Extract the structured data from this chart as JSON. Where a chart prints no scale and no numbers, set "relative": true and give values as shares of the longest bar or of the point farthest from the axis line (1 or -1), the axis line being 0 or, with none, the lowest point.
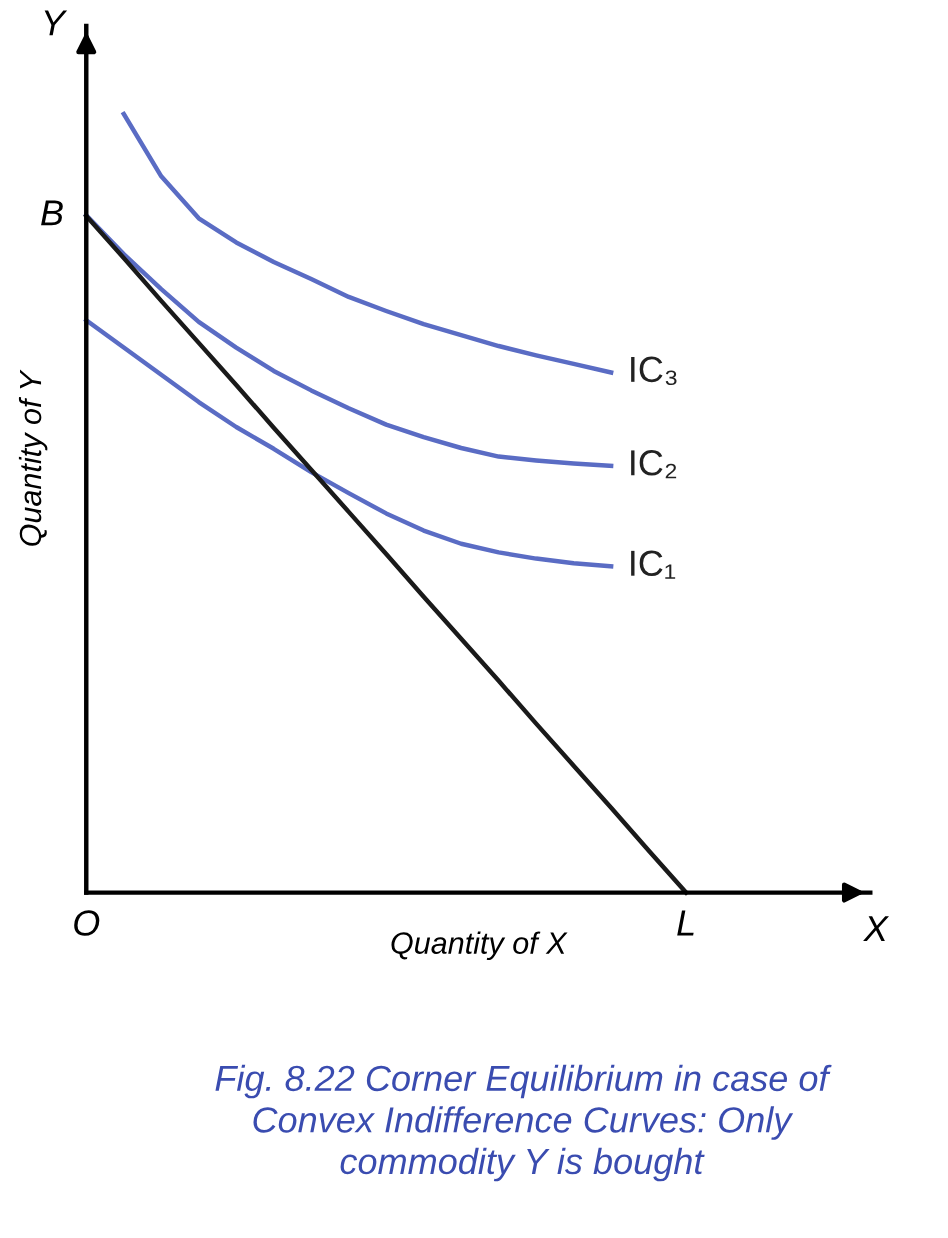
{
  "chart_data": {
    "type": "line",
    "relative": true,
    "legend": false,
    "marker": "none",
    "title": "Fig. 8.22 Corner Equilibrium in case of\nConvex Indifference Curves: Only\ncommodity Y is bought",
    "xlabel": "Quantity of X",
    "ylabel": "Quantity of Y",
    "categories": [
      null,
      null,
      null,
      null,
      null,
      null,
      null,
      null,
      null,
      null,
      null,
      null,
      null,
      null,
      null,
      null,
      null
    ],
    "series": [
      {
        "name": "IC₃",
        "color": "#5a6cc4",
        "values": [
          null,
          1,
          0.92,
          0.866,
          0.835,
          0.81,
          0.788,
          0.765,
          0.747,
          0.73,
          0.716,
          0.702,
          0.69,
          0.679,
          0.668,
          null,
          null
        ]
      },
      {
        "name": "IC₂",
        "color": "#5a6cc4",
        "values": [
          0.87,
          0.82,
          0.775,
          0.733,
          0.7,
          0.67,
          0.645,
          0.622,
          0.601,
          0.585,
          0.571,
          0.56,
          0.555,
          0.551,
          0.548,
          null,
          null
        ]
      },
      {
        "name": "IC₁",
        "color": "#5a6cc4",
        "values": [
          0.735,
          0.7,
          0.665,
          0.63,
          0.598,
          0.57,
          0.54,
          0.513,
          0.487,
          0.465,
          0.448,
          0.437,
          0.429,
          0.423,
          0.419,
          null,
          null
        ]
      },
      {
        "color": "#1a1a1a",
        "values": [
          0.869,
          0.815,
          0.76,
          0.706,
          0.652,
          0.597,
          0.543,
          0.489,
          0.435,
          0.38,
          0.326,
          0.272,
          0.217,
          0.163,
          0.109,
          0.054,
          0
        ]
      }
    ],
    "annotations": [
      "X",
      "Y",
      "O",
      "B",
      "L"
    ]
  }
}
